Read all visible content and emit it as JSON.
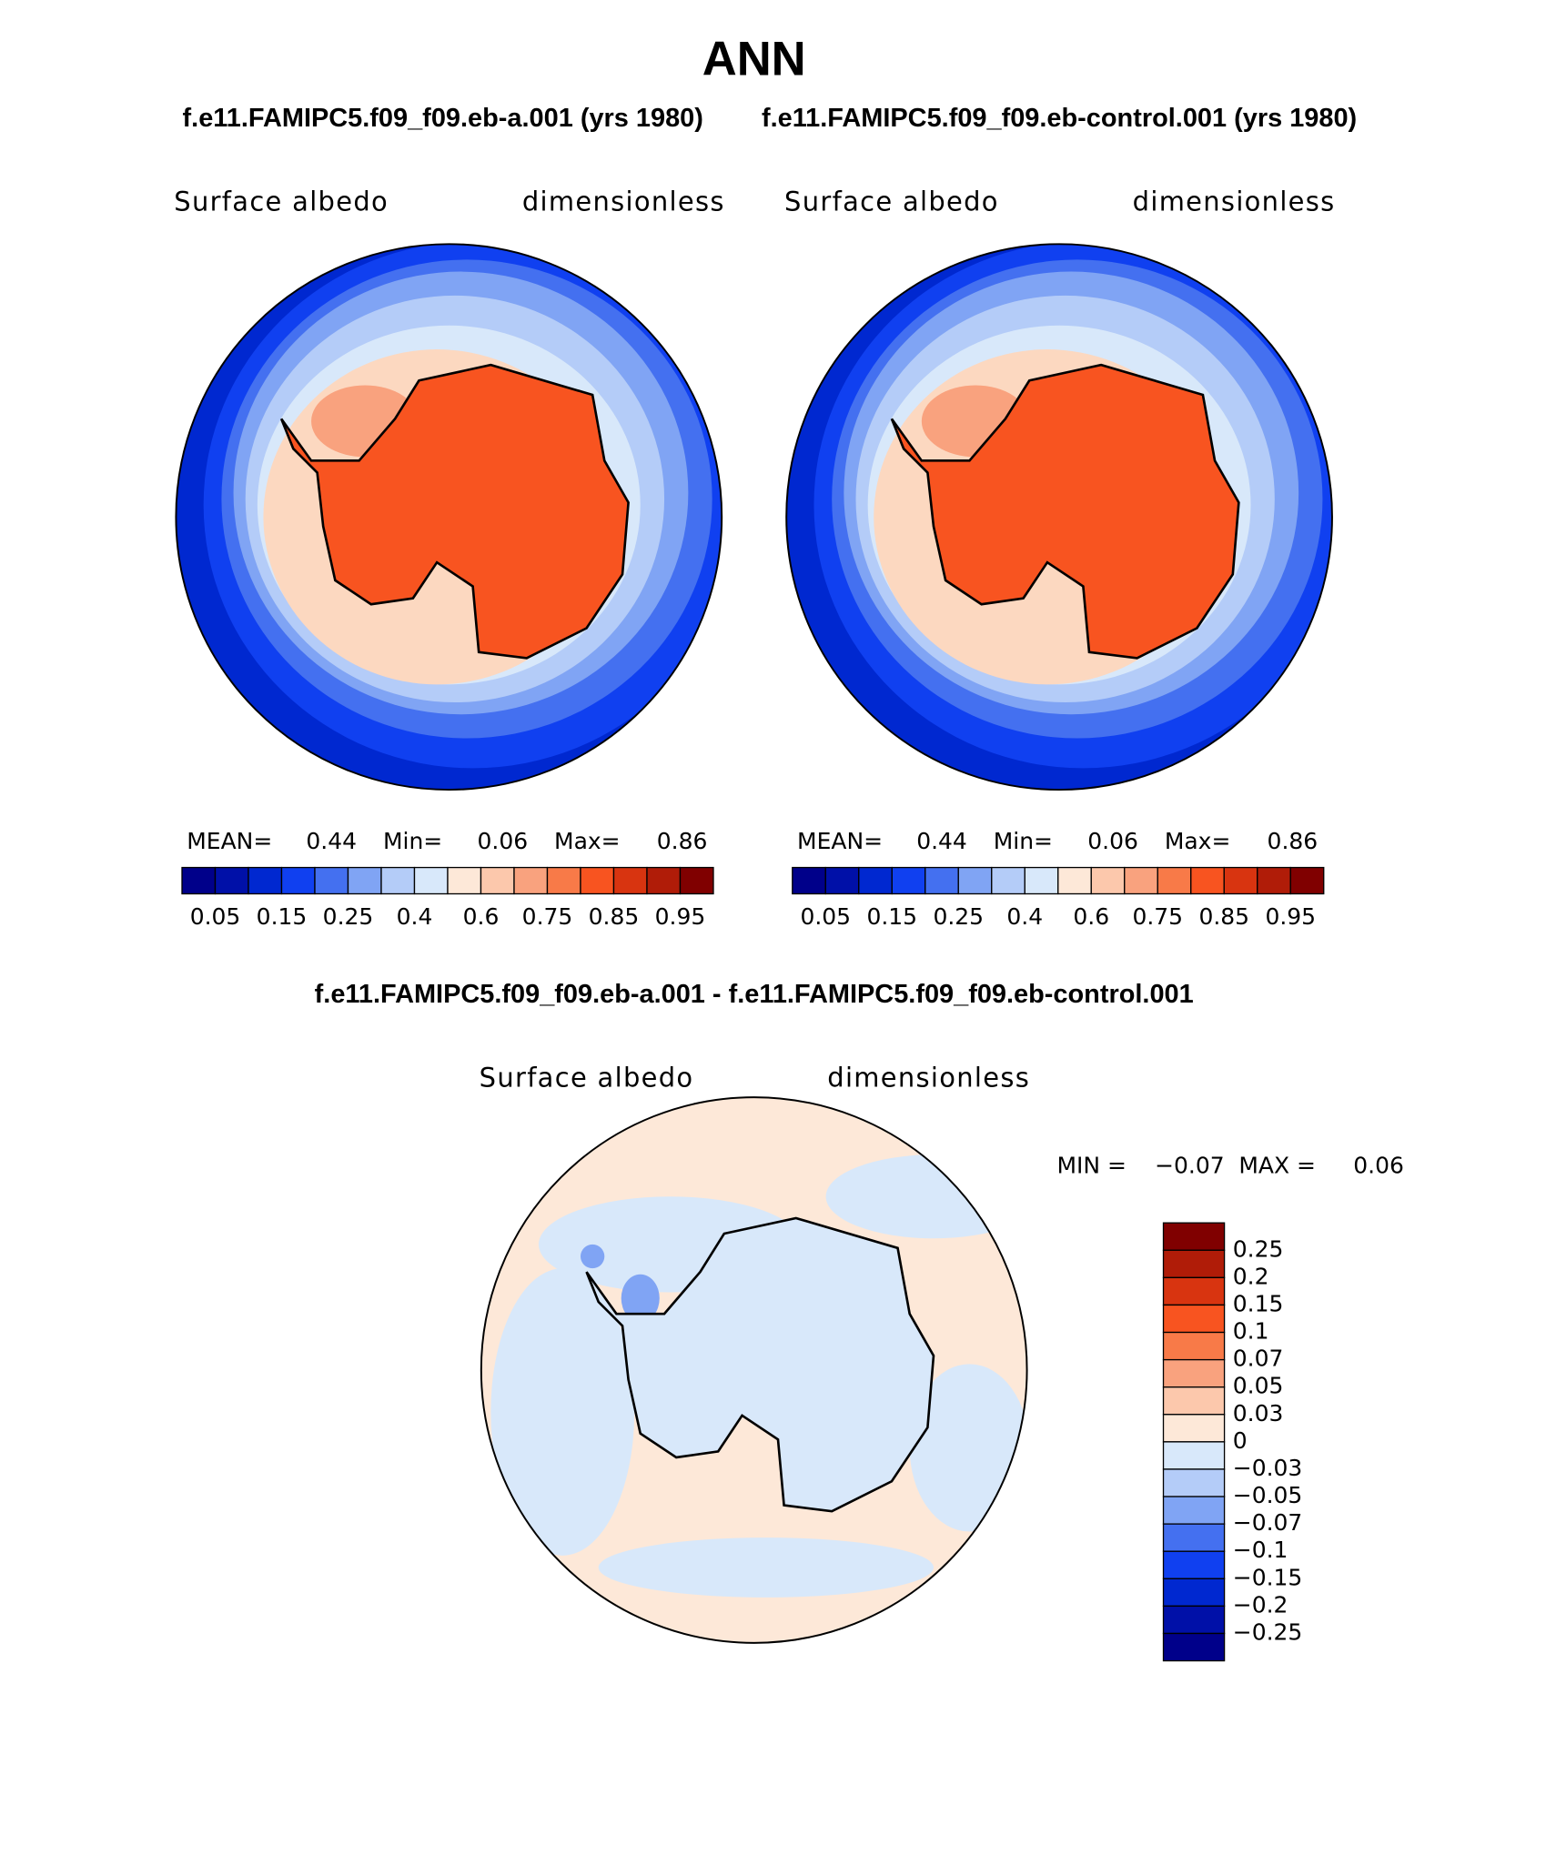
{
  "title": "ANN",
  "panels": [
    {
      "case": "f.e11.FAMIPC5.f09_f09.eb-a.001 (yrs 1980)",
      "variable": "Surface albedo",
      "units": "dimensionless",
      "stats": [
        {
          "label": "MEAN=",
          "value": "0.44"
        },
        {
          "label": "Min=",
          "value": "0.06"
        },
        {
          "label": "Max=",
          "value": "0.86"
        }
      ]
    },
    {
      "case": "f.e11.FAMIPC5.f09_f09.eb-control.001 (yrs 1980)",
      "variable": "Surface albedo",
      "units": "dimensionless",
      "stats": [
        {
          "label": "MEAN=",
          "value": "0.44"
        },
        {
          "label": "Min=",
          "value": "0.06"
        },
        {
          "label": "Max=",
          "value": "0.86"
        }
      ]
    }
  ],
  "colorbar": {
    "colors": [
      "#00008a",
      "#0010a8",
      "#0028d0",
      "#1040f0",
      "#4470f0",
      "#80a4f4",
      "#b4ccf8",
      "#d8e8fa",
      "#fde8d8",
      "#fcc8ac",
      "#f9a27e",
      "#f87a48",
      "#f85420",
      "#d83410",
      "#b01c08",
      "#800000"
    ],
    "labels": [
      "0.05",
      "0.15",
      "0.25",
      "0.4",
      "0.6",
      "0.75",
      "0.85",
      "0.95"
    ]
  },
  "difference": {
    "case": "f.e11.FAMIPC5.f09_f09.eb-a.001 - f.e11.FAMIPC5.f09_f09.eb-control.001",
    "variable": "Surface albedo",
    "units": "dimensionless",
    "stats": [
      {
        "label": "MIN =",
        "value": "−0.07"
      },
      {
        "label": "MAX =",
        "value": "0.06"
      }
    ],
    "colorbar": {
      "colors": [
        "#800000",
        "#b01c08",
        "#d83410",
        "#f85420",
        "#f87a48",
        "#f9a27e",
        "#fcc8ac",
        "#fde8d8",
        "#d8e8fa",
        "#b4ccf8",
        "#80a4f4",
        "#4470f0",
        "#1040f0",
        "#0028d0",
        "#0010a8",
        "#00008a"
      ],
      "labels": [
        "0.25",
        "0.2",
        "0.15",
        "0.1",
        "0.07",
        "0.05",
        "0.03",
        "0",
        "−0.03",
        "−0.05",
        "−0.07",
        "−0.1",
        "−0.15",
        "−0.2",
        "−0.25"
      ]
    }
  }
}
